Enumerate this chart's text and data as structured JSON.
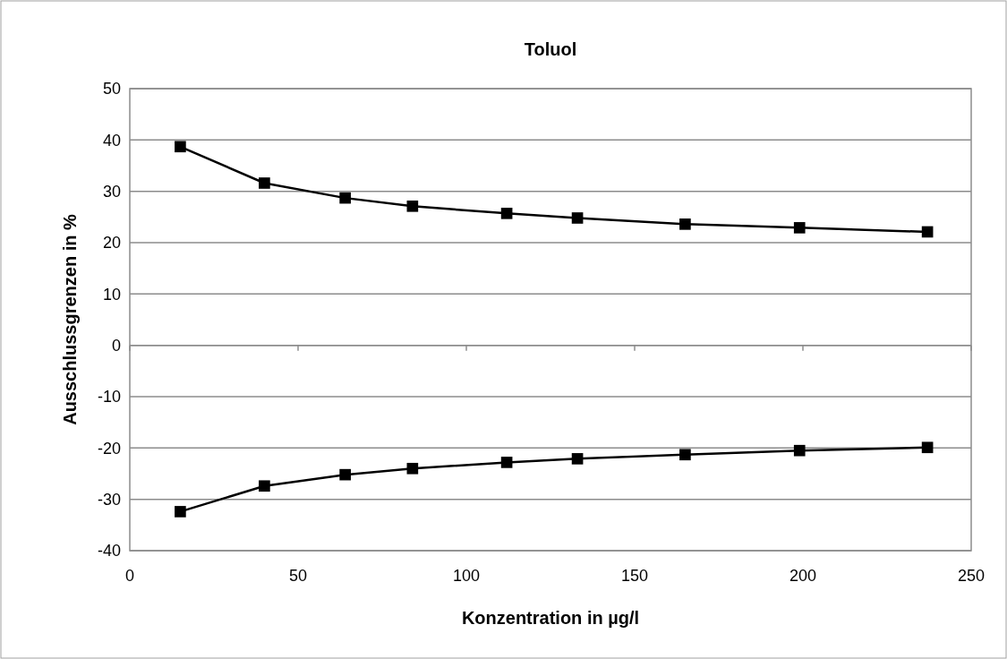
{
  "chart_data": {
    "type": "line",
    "title": "Toluol",
    "xlabel": "Konzentration in µg/l",
    "ylabel": "Ausschlussgrenzen in %",
    "x": [
      15,
      40,
      64,
      84,
      112,
      133,
      165,
      199,
      237
    ],
    "series": [
      {
        "color": "#000000",
        "values": [
          38.7,
          31.6,
          28.7,
          27.1,
          25.7,
          24.8,
          23.6,
          22.9,
          22.1
        ]
      },
      {
        "color": "#000000",
        "values": [
          -32.4,
          -27.4,
          -25.2,
          -24.0,
          -22.8,
          -22.1,
          -21.3,
          -20.5,
          -19.9
        ]
      }
    ],
    "xlim": [
      0,
      250
    ],
    "xticks": [
      0,
      50,
      100,
      150,
      200,
      250
    ],
    "ylim": [
      -40,
      50
    ],
    "yticks": [
      -40,
      -30,
      -20,
      -10,
      0,
      10,
      20,
      30,
      40,
      50
    ],
    "grid": "y",
    "marker": "square",
    "line_style": "solid"
  }
}
